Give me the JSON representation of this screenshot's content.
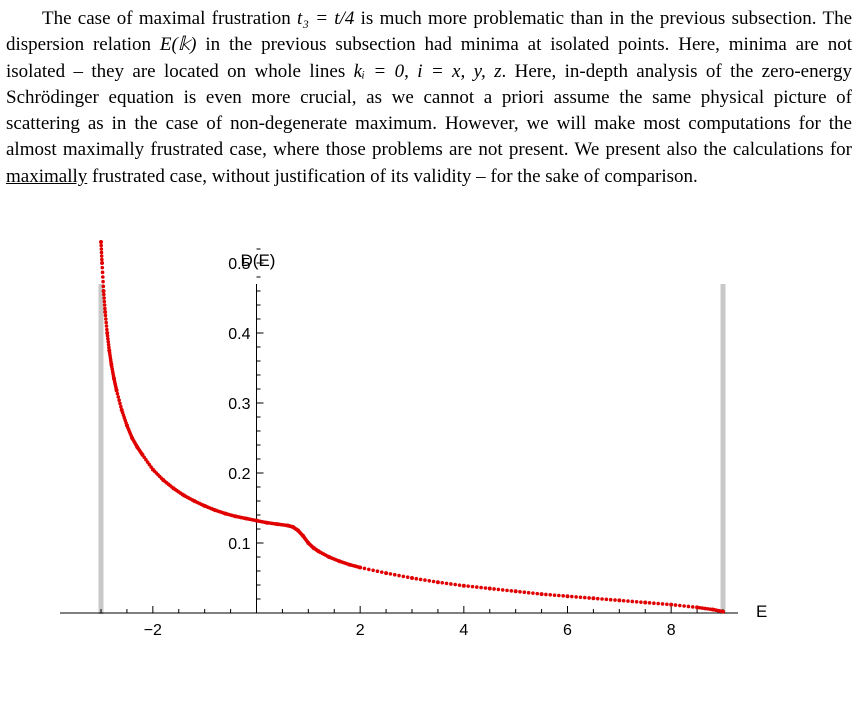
{
  "paragraph": {
    "s1a": "The case of maximal frustration ",
    "s1b": " is much more problematic than in the previous subsection. The dispersion relation ",
    "s1c": " in the previous subsection had minima at isolated points. Here, minima are not isolated – they are located on whole lines ",
    "s1d": ", ",
    "s1e": ". Here, in-depth analysis of the zero-energy Schrödinger equation is even more crucial, as we cannot a priori assume the same physical picture of scattering as in the case of non-degenerate maximum. However, we will make most computations for the almost maximally frustrated case, where those problems are not present. We present also the calculations for ",
    "underlined": "maximally",
    "s1f": " frustrated case, without justification of its validity – for the sake of comparison.",
    "math_t3": "t₃ = t/4",
    "math_Ek": "E(𝕜)",
    "math_ki": "kᵢ = 0",
    "math_ixyz": "i = x, y, z"
  },
  "chart_data": {
    "type": "scatter",
    "xlabel": "E",
    "ylabel": "D(E)",
    "xlim": [
      -3.1,
      9.3
    ],
    "ylim": [
      0,
      0.56
    ],
    "x_ticks": [
      -2,
      2,
      4,
      6,
      8
    ],
    "x_tick_labels": [
      "−2",
      "2",
      "4",
      "6",
      "8"
    ],
    "y_ticks": [
      0.1,
      0.2,
      0.3,
      0.4,
      0.5
    ],
    "y_tick_labels": [
      "0.1",
      "0.2",
      "0.3",
      "0.4",
      "0.5"
    ],
    "band_edges": [
      -3,
      9
    ],
    "series": [
      {
        "color": "#e00000",
        "x": [
          -3.0,
          -2.98,
          -2.95,
          -2.92,
          -2.88,
          -2.84,
          -2.8,
          -2.75,
          -2.7,
          -2.6,
          -2.5,
          -2.4,
          -2.3,
          -2.2,
          -2.0,
          -1.8,
          -1.6,
          -1.4,
          -1.2,
          -1.0,
          -0.8,
          -0.6,
          -0.4,
          -0.2,
          0.0,
          0.2,
          0.4,
          0.6,
          0.7,
          0.8,
          0.9,
          1.0,
          1.1,
          1.2,
          1.4,
          1.6,
          1.8,
          2.0,
          2.5,
          3.0,
          3.5,
          4.0,
          4.5,
          5.0,
          5.5,
          6.0,
          6.5,
          7.0,
          7.5,
          8.0,
          8.5,
          8.8,
          9.0
        ],
        "y": [
          0.53,
          0.5,
          0.46,
          0.43,
          0.4,
          0.375,
          0.355,
          0.335,
          0.318,
          0.29,
          0.268,
          0.25,
          0.237,
          0.226,
          0.205,
          0.19,
          0.178,
          0.168,
          0.16,
          0.153,
          0.147,
          0.142,
          0.138,
          0.135,
          0.132,
          0.129,
          0.127,
          0.125,
          0.123,
          0.118,
          0.11,
          0.1,
          0.093,
          0.088,
          0.08,
          0.074,
          0.069,
          0.065,
          0.057,
          0.05,
          0.044,
          0.039,
          0.035,
          0.031,
          0.027,
          0.024,
          0.021,
          0.018,
          0.015,
          0.012,
          0.008,
          0.005,
          0.002
        ]
      }
    ]
  }
}
